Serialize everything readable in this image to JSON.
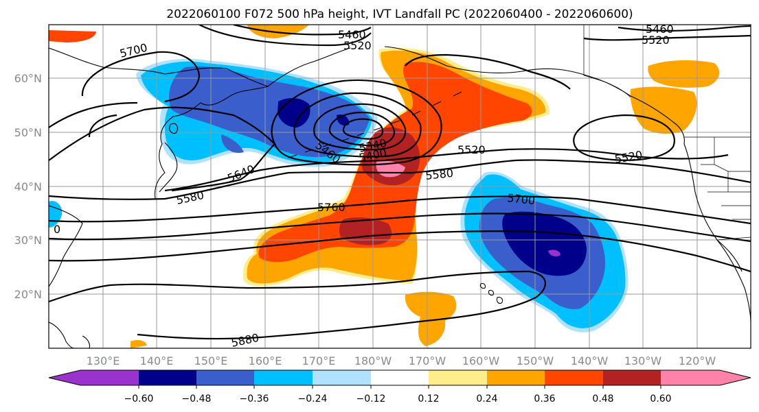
{
  "title": "2022060100 F072 500 hPa height, IVT Landfall PC (2022060400 - 2022060600)",
  "longitude_ticks": [
    "130°E",
    "140°E",
    "150°E",
    "160°E",
    "170°E",
    "180°W",
    "170°W",
    "160°W",
    "150°W",
    "140°W",
    "130°W",
    "120°W"
  ],
  "latitude_ticks": [
    "60°N",
    "50°N",
    "40°N",
    "30°N",
    "20°N"
  ],
  "contour_labels": [
    "5700",
    "5460",
    "5520",
    "5460",
    "5520",
    "5460",
    "5340",
    "5400",
    "5520",
    "5580",
    "5640",
    "5580",
    "5700",
    "5760",
    "0",
    "5880"
  ],
  "colorbar": {
    "ticks": [
      "−0.60",
      "−0.48",
      "−0.36",
      "−0.24",
      "−0.12",
      "0.12",
      "0.24",
      "0.36",
      "0.48",
      "0.60"
    ],
    "colors": [
      "#9a32cd",
      "#00008b",
      "#3a5fcd",
      "#00bfff",
      "#b0e2ff",
      "#ffffff",
      "#ffec8b",
      "#ffa500",
      "#ff4500",
      "#b22222",
      "#ff82ab"
    ]
  },
  "fill_colors": {
    "purple": "#9a32cd",
    "navy": "#00008b",
    "blue": "#3a5fcd",
    "sky": "#00bfff",
    "lightblue": "#b0e2ff",
    "yellow": "#ffec8b",
    "orange": "#ffa500",
    "redorange": "#ff4500",
    "firebrick": "#b22222",
    "pink": "#ff82ab"
  }
}
